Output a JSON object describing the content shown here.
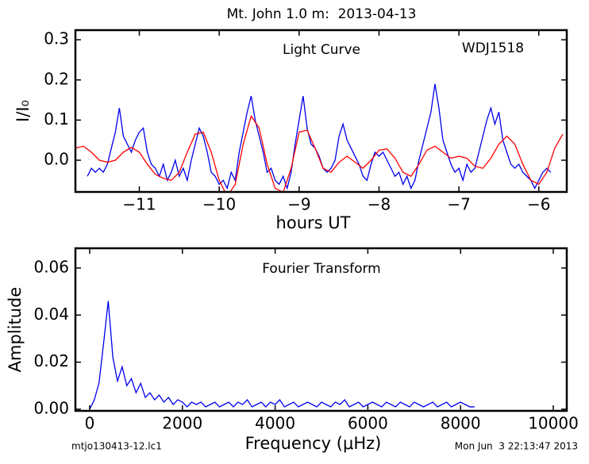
{
  "title": "Mt. John 1.0 m:  2013-04-13",
  "footer_left": "mtjo130413-12.lc1",
  "footer_right": "Mon Jun  3 22:13:47 2013",
  "chart_data": [
    {
      "type": "line",
      "xlabel": "hours UT",
      "ylabel": "I/I₀",
      "annotations": [
        "Light Curve",
        "WDJ1518"
      ],
      "xlim": [
        -11.8,
        -5.65
      ],
      "ylim": [
        -0.079,
        0.324
      ],
      "xticks": [
        {
          "value": -11,
          "label": "−11"
        },
        {
          "value": -10,
          "label": "−10"
        },
        {
          "value": -9,
          "label": "−9"
        },
        {
          "value": -8,
          "label": "−8"
        },
        {
          "value": -7,
          "label": "−7"
        },
        {
          "value": -6,
          "label": "−6"
        }
      ],
      "yticks": [
        {
          "value": 0,
          "label": "0.0"
        },
        0.1,
        0.2,
        0.3
      ],
      "series": [
        {
          "color": "#0000ee",
          "x": [
            -11.65,
            -11.6,
            -11.55,
            -11.5,
            -11.45,
            -11.4,
            -11.35,
            -11.3,
            -11.25,
            -11.2,
            -11.15,
            -11.1,
            -11.05,
            -11.0,
            -10.95,
            -10.9,
            -10.85,
            -10.8,
            -10.75,
            -10.7,
            -10.65,
            -10.6,
            -10.55,
            -10.5,
            -10.45,
            -10.4,
            -10.35,
            -10.3,
            -10.25,
            -10.2,
            -10.15,
            -10.1,
            -10.05,
            -10.0,
            -9.95,
            -9.9,
            -9.85,
            -9.8,
            -9.75,
            -9.7,
            -9.65,
            -9.6,
            -9.55,
            -9.5,
            -9.45,
            -9.4,
            -9.35,
            -9.3,
            -9.25,
            -9.2,
            -9.15,
            -9.1,
            -9.05,
            -9.0,
            -8.95,
            -8.9,
            -8.85,
            -8.8,
            -8.75,
            -8.7,
            -8.65,
            -8.6,
            -8.55,
            -8.5,
            -8.45,
            -8.4,
            -8.35,
            -8.3,
            -8.25,
            -8.2,
            -8.15,
            -8.1,
            -8.05,
            -8.0,
            -7.95,
            -7.9,
            -7.85,
            -7.8,
            -7.75,
            -7.7,
            -7.65,
            -7.6,
            -7.55,
            -7.5,
            -7.45,
            -7.4,
            -7.35,
            -7.3,
            -7.25,
            -7.2,
            -7.15,
            -7.1,
            -7.05,
            -7.0,
            -6.95,
            -6.9,
            -6.85,
            -6.8,
            -6.75,
            -6.7,
            -6.65,
            -6.6,
            -6.55,
            -6.5,
            -6.45,
            -6.4,
            -6.35,
            -6.3,
            -6.25,
            -6.2,
            -6.15,
            -6.1,
            -6.05,
            -6.0,
            -5.95,
            -5.9,
            -5.85
          ],
          "values": [
            -0.04,
            -0.02,
            -0.03,
            -0.02,
            -0.03,
            -0.01,
            0.03,
            0.07,
            0.13,
            0.06,
            0.04,
            0.02,
            0.05,
            0.07,
            0.08,
            0.02,
            -0.01,
            -0.02,
            -0.04,
            -0.01,
            -0.05,
            -0.03,
            0.0,
            -0.04,
            -0.02,
            -0.05,
            0.0,
            0.04,
            0.08,
            0.06,
            0.02,
            -0.03,
            -0.04,
            -0.06,
            -0.05,
            -0.07,
            -0.03,
            -0.05,
            0.02,
            0.07,
            0.12,
            0.16,
            0.1,
            0.06,
            0.02,
            -0.03,
            -0.02,
            -0.05,
            -0.06,
            -0.04,
            -0.07,
            -0.03,
            0.04,
            0.1,
            0.16,
            0.08,
            0.04,
            0.03,
            0.01,
            -0.02,
            -0.03,
            -0.02,
            0.0,
            0.06,
            0.09,
            0.05,
            0.03,
            0.01,
            -0.01,
            -0.04,
            -0.05,
            -0.01,
            0.02,
            0.01,
            0.02,
            0.0,
            -0.02,
            -0.04,
            -0.03,
            -0.06,
            -0.04,
            -0.07,
            -0.05,
            0.0,
            0.04,
            0.08,
            0.12,
            0.19,
            0.13,
            0.05,
            0.02,
            -0.01,
            -0.03,
            -0.02,
            -0.05,
            -0.01,
            -0.03,
            -0.02,
            0.02,
            0.06,
            0.1,
            0.13,
            0.09,
            0.12,
            0.05,
            0.02,
            -0.01,
            -0.02,
            -0.01,
            -0.03,
            -0.04,
            -0.05,
            -0.07,
            -0.05,
            -0.03,
            -0.02,
            -0.03
          ]
        },
        {
          "color": "#ff0000",
          "x": [
            -11.8,
            -11.7,
            -11.6,
            -11.5,
            -11.4,
            -11.3,
            -11.2,
            -11.1,
            -11.0,
            -10.9,
            -10.8,
            -10.7,
            -10.6,
            -10.5,
            -10.4,
            -10.3,
            -10.2,
            -10.1,
            -10.0,
            -9.9,
            -9.8,
            -9.7,
            -9.6,
            -9.5,
            -9.4,
            -9.3,
            -9.2,
            -9.1,
            -9.0,
            -8.9,
            -8.8,
            -8.7,
            -8.6,
            -8.5,
            -8.4,
            -8.3,
            -8.2,
            -8.1,
            -8.0,
            -7.9,
            -7.8,
            -7.7,
            -7.6,
            -7.5,
            -7.4,
            -7.3,
            -7.2,
            -7.1,
            -7.0,
            -6.9,
            -6.8,
            -6.7,
            -6.6,
            -6.5,
            -6.4,
            -6.3,
            -6.2,
            -6.1,
            -6.0,
            -5.9,
            -5.8,
            -5.7
          ],
          "values": [
            0.03,
            0.035,
            0.02,
            0.0,
            -0.005,
            0.0,
            0.02,
            0.032,
            0.02,
            -0.01,
            -0.035,
            -0.045,
            -0.05,
            -0.03,
            0.02,
            0.065,
            0.07,
            0.02,
            -0.05,
            -0.09,
            -0.06,
            0.04,
            0.11,
            0.08,
            -0.01,
            -0.07,
            -0.08,
            -0.02,
            0.07,
            0.075,
            0.03,
            -0.02,
            -0.03,
            -0.005,
            0.01,
            -0.005,
            -0.02,
            0.0,
            0.025,
            0.028,
            0.005,
            -0.03,
            -0.04,
            -0.01,
            0.025,
            0.035,
            0.02,
            0.005,
            0.01,
            0.005,
            -0.015,
            -0.02,
            0.005,
            0.04,
            0.06,
            0.04,
            -0.01,
            -0.05,
            -0.06,
            -0.03,
            0.03,
            0.065
          ]
        }
      ]
    },
    {
      "type": "line",
      "xlabel": "Frequency (μHz)",
      "ylabel": "Amplitude",
      "annotations": [
        "Fourier Transform"
      ],
      "xlim": [
        -308,
        10291
      ],
      "ylim": [
        -0.0007,
        0.0684
      ],
      "xticks": [
        0,
        2000,
        4000,
        6000,
        8000,
        10000
      ],
      "yticks": [
        {
          "value": 0,
          "label": "0.00"
        },
        {
          "value": 0.02,
          "label": "0.02"
        },
        {
          "value": 0.04,
          "label": "0.04"
        },
        {
          "value": 0.06,
          "label": "0.06"
        }
      ],
      "series": [
        {
          "color": "#0000ee",
          "x": [
            0,
            100,
            200,
            300,
            400,
            500,
            600,
            700,
            800,
            900,
            1000,
            1100,
            1200,
            1300,
            1400,
            1500,
            1600,
            1700,
            1800,
            1900,
            2000,
            2100,
            2200,
            2300,
            2400,
            2500,
            2600,
            2700,
            2800,
            2900,
            3000,
            3100,
            3200,
            3300,
            3400,
            3500,
            3600,
            3700,
            3800,
            3900,
            4000,
            4100,
            4200,
            4300,
            4400,
            4500,
            4600,
            4700,
            4800,
            4900,
            5000,
            5100,
            5200,
            5300,
            5400,
            5500,
            5600,
            5700,
            5800,
            5900,
            6000,
            6100,
            6200,
            6300,
            6400,
            6500,
            6600,
            6700,
            6800,
            6900,
            7000,
            7100,
            7200,
            7300,
            7400,
            7500,
            7600,
            7700,
            7800,
            7900,
            8000,
            8100,
            8200,
            8300
          ],
          "values": [
            0.0,
            0.004,
            0.011,
            0.028,
            0.046,
            0.022,
            0.012,
            0.018,
            0.01,
            0.013,
            0.007,
            0.011,
            0.005,
            0.007,
            0.004,
            0.006,
            0.003,
            0.005,
            0.002,
            0.004,
            0.003,
            0.001,
            0.003,
            0.002,
            0.003,
            0.001,
            0.002,
            0.003,
            0.001,
            0.002,
            0.003,
            0.001,
            0.003,
            0.002,
            0.004,
            0.001,
            0.002,
            0.003,
            0.001,
            0.003,
            0.002,
            0.004,
            0.001,
            0.002,
            0.003,
            0.001,
            0.002,
            0.003,
            0.002,
            0.001,
            0.003,
            0.002,
            0.001,
            0.003,
            0.002,
            0.004,
            0.001,
            0.002,
            0.003,
            0.001,
            0.002,
            0.003,
            0.002,
            0.001,
            0.003,
            0.002,
            0.001,
            0.003,
            0.002,
            0.001,
            0.003,
            0.002,
            0.001,
            0.002,
            0.003,
            0.001,
            0.002,
            0.003,
            0.001,
            0.002,
            0.003,
            0.002,
            0.001,
            0.001
          ]
        }
      ]
    }
  ]
}
